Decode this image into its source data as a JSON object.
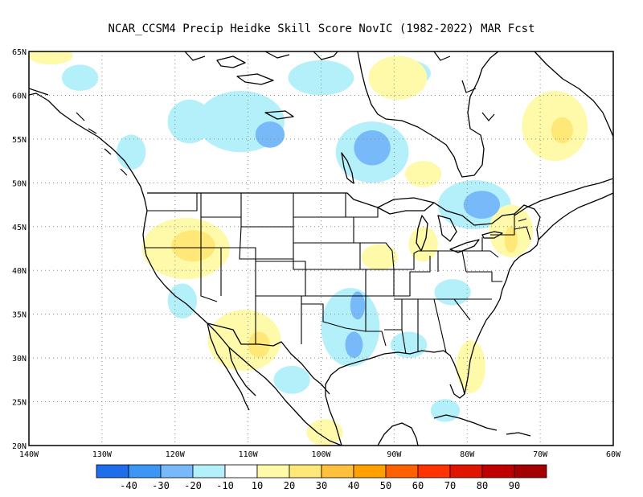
{
  "title": "NCAR_CCSM4 Precip Heidke Skill Score NovIC (1982-2022) MAR Fcst",
  "map": {
    "projection": "lat-lon",
    "lon_range": [
      -140,
      -60
    ],
    "lat_range": [
      20,
      65
    ],
    "lat_ticks": [
      {
        "lat": 65,
        "label": "65N"
      },
      {
        "lat": 60,
        "label": "60N"
      },
      {
        "lat": 55,
        "label": "55N"
      },
      {
        "lat": 50,
        "label": "50N"
      },
      {
        "lat": 45,
        "label": "45N"
      },
      {
        "lat": 40,
        "label": "40N"
      },
      {
        "lat": 35,
        "label": "35N"
      },
      {
        "lat": 30,
        "label": "30N"
      },
      {
        "lat": 25,
        "label": "25N"
      },
      {
        "lat": 20,
        "label": "20N"
      }
    ],
    "lon_ticks": [
      {
        "lon": -140,
        "label": "140W"
      },
      {
        "lon": -130,
        "label": "130W"
      },
      {
        "lon": -120,
        "label": "120W"
      },
      {
        "lon": -110,
        "label": "110W"
      },
      {
        "lon": -100,
        "label": "100W"
      },
      {
        "lon": -90,
        "label": "90W"
      },
      {
        "lon": -80,
        "label": "80W"
      },
      {
        "lon": -70,
        "label": "70W"
      },
      {
        "lon": -60,
        "label": "60W"
      }
    ],
    "gridlines": "dotted",
    "land_color": "#ffffff",
    "coast_color": "#000000"
  },
  "colorbar": {
    "colors": [
      "#1e6eeb",
      "#3c96f5",
      "#78b9fa",
      "#b4f0fa",
      "#ffffff",
      "#fffaaa",
      "#ffe878",
      "#ffc03c",
      "#ffa000",
      "#ff6000",
      "#ff3200",
      "#e11400",
      "#c00000",
      "#a50000"
    ],
    "labels": [
      "-40",
      "-30",
      "-20",
      "-10",
      "10",
      "20",
      "30",
      "40",
      "50",
      "60",
      "70",
      "80",
      "90"
    ]
  },
  "skill_regions": [
    {
      "value": -20,
      "lon": -107,
      "lat": 55.5,
      "rx": 2.0,
      "ry": 1.5
    },
    {
      "value": -20,
      "lon": -93,
      "lat": 54.0,
      "rx": 2.5,
      "ry": 2.0
    },
    {
      "value": -20,
      "lon": -78,
      "lat": 47.5,
      "rx": 2.5,
      "ry": 1.6
    },
    {
      "value": -20,
      "lon": -95.5,
      "lat": 31.5,
      "rx": 1.2,
      "ry": 1.5
    },
    {
      "value": -20,
      "lon": -95.0,
      "lat": 36.0,
      "rx": 1.0,
      "ry": 1.6
    },
    {
      "value": -10,
      "lon": -111,
      "lat": 57.0,
      "rx": 6.0,
      "ry": 3.5
    },
    {
      "value": -10,
      "lon": -93,
      "lat": 53.5,
      "rx": 5.0,
      "ry": 3.5
    },
    {
      "value": -10,
      "lon": -79,
      "lat": 47.5,
      "rx": 5.0,
      "ry": 2.8
    },
    {
      "value": -10,
      "lon": -96,
      "lat": 33.5,
      "rx": 4.0,
      "ry": 4.5
    },
    {
      "value": -10,
      "lon": -100,
      "lat": 62.0,
      "rx": 4.5,
      "ry": 2.0
    },
    {
      "value": -10,
      "lon": -118,
      "lat": 57.0,
      "rx": 3.0,
      "ry": 2.5
    },
    {
      "value": -10,
      "lon": -88,
      "lat": 31.5,
      "rx": 2.5,
      "ry": 1.5
    },
    {
      "value": -10,
      "lon": -82,
      "lat": 37.5,
      "rx": 2.5,
      "ry": 1.5
    },
    {
      "value": -10,
      "lon": -104,
      "lat": 27.5,
      "rx": 2.5,
      "ry": 1.6
    },
    {
      "value": -10,
      "lon": -119,
      "lat": 36.5,
      "rx": 2.0,
      "ry": 2.0
    },
    {
      "value": -10,
      "lon": -126,
      "lat": 53.5,
      "rx": 2.0,
      "ry": 2.0
    },
    {
      "value": -10,
      "lon": -83,
      "lat": 24.0,
      "rx": 2.0,
      "ry": 1.3
    },
    {
      "value": -10,
      "lon": -88,
      "lat": 62.5,
      "rx": 3.0,
      "ry": 1.5
    },
    {
      "value": -10,
      "lon": -133,
      "lat": 62.0,
      "rx": 2.5,
      "ry": 1.5
    },
    {
      "value": 10,
      "lon": -118.5,
      "lat": 42.5,
      "rx": 6.0,
      "ry": 3.5
    },
    {
      "value": 10,
      "lon": -110.5,
      "lat": 32.0,
      "rx": 5.0,
      "ry": 3.5
    },
    {
      "value": 10,
      "lon": -74,
      "lat": 44.5,
      "rx": 3.0,
      "ry": 3.0
    },
    {
      "value": 10,
      "lon": -89.5,
      "lat": 62.0,
      "rx": 4.0,
      "ry": 2.5
    },
    {
      "value": 10,
      "lon": -68,
      "lat": 56.5,
      "rx": 4.5,
      "ry": 4.0
    },
    {
      "value": 10,
      "lon": -79.5,
      "lat": 29.0,
      "rx": 2.0,
      "ry": 3.0
    },
    {
      "value": 10,
      "lon": -99.5,
      "lat": 21.5,
      "rx": 2.5,
      "ry": 1.5
    },
    {
      "value": 10,
      "lon": -92,
      "lat": 41.5,
      "rx": 2.5,
      "ry": 1.5
    },
    {
      "value": 10,
      "lon": -86,
      "lat": 43.0,
      "rx": 2.0,
      "ry": 2.0
    },
    {
      "value": 10,
      "lon": -137,
      "lat": 64.5,
      "rx": 3.0,
      "ry": 1.0
    },
    {
      "value": 10,
      "lon": -86,
      "lat": 51.0,
      "rx": 2.5,
      "ry": 1.5
    },
    {
      "value": 20,
      "lon": -117.5,
      "lat": 42.8,
      "rx": 3.0,
      "ry": 1.8
    },
    {
      "value": 20,
      "lon": -108.5,
      "lat": 31.5,
      "rx": 1.5,
      "ry": 1.5
    },
    {
      "value": 20,
      "lon": -74,
      "lat": 43.5,
      "rx": 0.9,
      "ry": 1.5
    },
    {
      "value": 20,
      "lon": -67,
      "lat": 56.0,
      "rx": 1.5,
      "ry": 1.5
    }
  ]
}
